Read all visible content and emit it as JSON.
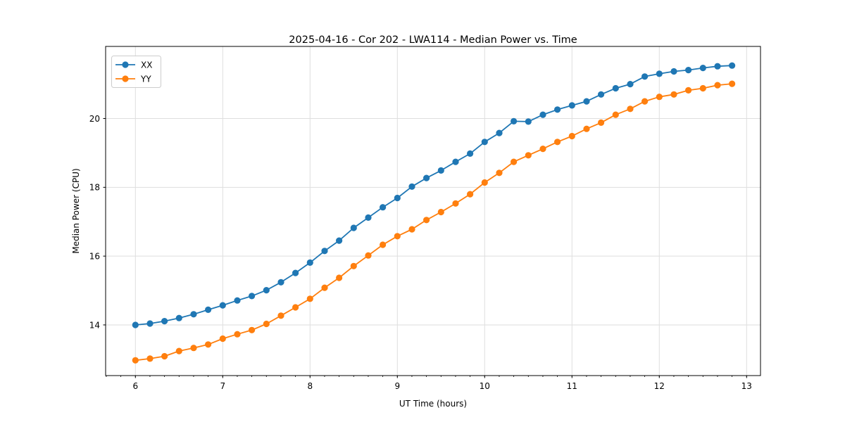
{
  "chart_data": {
    "type": "line",
    "title": "2025-04-16 - Cor 202 - LWA114 - Median Power vs. Time",
    "xlabel": "UT Time (hours)",
    "ylabel": "Median Power (CPU)",
    "xlim": [
      5.659,
      13.159
    ],
    "ylim": [
      12.527,
      22.096
    ],
    "xticks": [
      6,
      7,
      8,
      9,
      10,
      11,
      12,
      13
    ],
    "yticks": [
      14,
      16,
      18,
      20
    ],
    "x_minor_interval": 0.1666667,
    "grid": true,
    "legend_position": "upper left",
    "marker": "circle",
    "x": [
      6.0,
      6.167,
      6.333,
      6.5,
      6.667,
      6.833,
      7.0,
      7.167,
      7.333,
      7.5,
      7.667,
      7.833,
      8.0,
      8.167,
      8.333,
      8.5,
      8.667,
      8.833,
      9.0,
      9.167,
      9.333,
      9.5,
      9.667,
      9.833,
      10.0,
      10.167,
      10.333,
      10.5,
      10.667,
      10.833,
      11.0,
      11.167,
      11.333,
      11.5,
      11.667,
      11.833,
      12.0,
      12.167,
      12.333,
      12.5,
      12.667,
      12.833
    ],
    "series": [
      {
        "name": "XX",
        "color": "#1f77b4",
        "values": [
          14.0,
          14.04,
          14.11,
          14.2,
          14.31,
          14.44,
          14.57,
          14.71,
          14.84,
          15.01,
          15.24,
          15.51,
          15.81,
          16.15,
          16.45,
          16.82,
          17.12,
          17.42,
          17.69,
          18.02,
          18.27,
          18.49,
          18.74,
          18.98,
          19.32,
          19.58,
          19.92,
          19.91,
          20.11,
          20.26,
          20.38,
          20.5,
          20.7,
          20.88,
          21.0,
          21.22,
          21.3,
          21.37,
          21.41,
          21.47,
          21.52,
          21.54
        ]
      },
      {
        "name": "YY",
        "color": "#ff7f0e",
        "values": [
          12.97,
          13.02,
          13.09,
          13.24,
          13.33,
          13.43,
          13.6,
          13.73,
          13.85,
          14.03,
          14.27,
          14.51,
          14.76,
          15.08,
          15.37,
          15.71,
          16.02,
          16.33,
          16.58,
          16.78,
          17.05,
          17.28,
          17.53,
          17.8,
          18.14,
          18.42,
          18.74,
          18.93,
          19.12,
          19.32,
          19.49,
          19.7,
          19.88,
          20.11,
          20.28,
          20.5,
          20.63,
          20.7,
          20.82,
          20.88,
          20.97,
          21.01
        ]
      }
    ]
  },
  "colors": {
    "grid": "#dedede",
    "spine": "#000000",
    "tick": "#000000",
    "legend_border": "#cccccc",
    "legend_bg": "#ffffff"
  }
}
